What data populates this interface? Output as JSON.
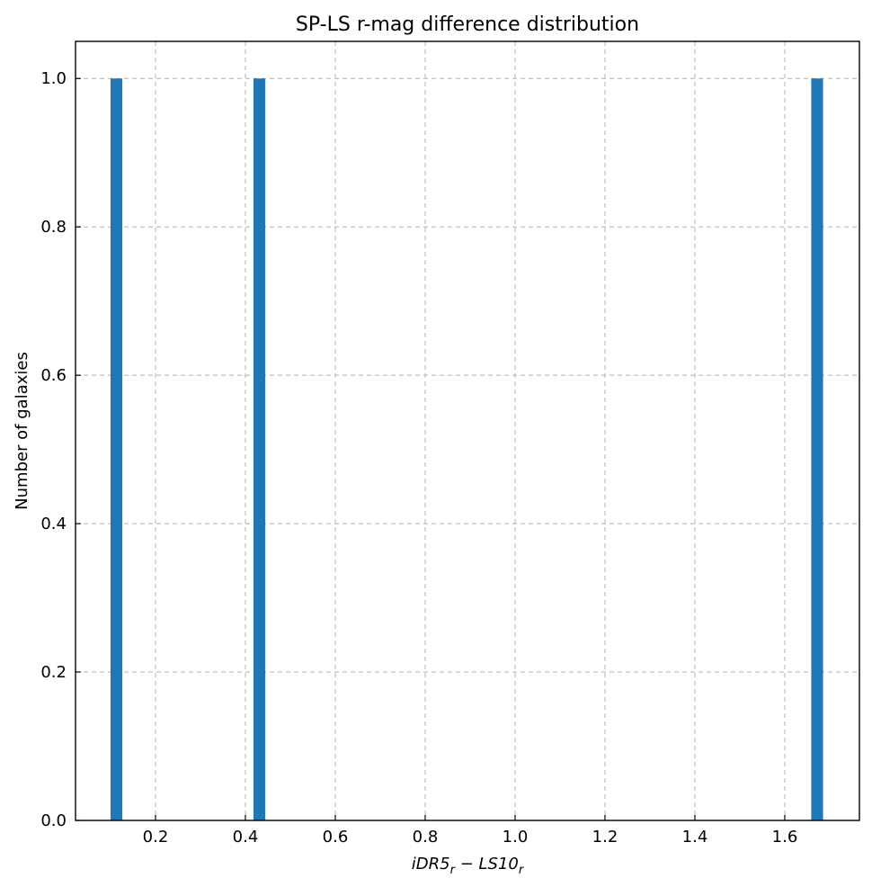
{
  "chart_data": {
    "type": "bar",
    "title": "SP-LS r-mag difference distribution",
    "xlabel": "iDR5_r - LS10_r",
    "ylabel": "Number of galaxies",
    "xlim": [
      0.022,
      1.766
    ],
    "ylim": [
      0,
      1.05
    ],
    "xticks": [
      0.2,
      0.4,
      0.6,
      0.8,
      1.0,
      1.2,
      1.4,
      1.6
    ],
    "yticks": [
      0.0,
      0.2,
      0.4,
      0.6,
      0.8,
      1.0
    ],
    "grid": true,
    "bar_color": "#1f77b4",
    "bin_width": 0.0263,
    "bars": [
      {
        "x": 0.113,
        "value": 1
      },
      {
        "x": 0.431,
        "value": 1
      },
      {
        "x": 1.672,
        "value": 1
      }
    ]
  },
  "axis_labels": {
    "x_main_1": "iDR5",
    "x_sub_1": "r",
    "x_minus": " − ",
    "x_main_2": "LS10",
    "x_sub_2": "r"
  }
}
